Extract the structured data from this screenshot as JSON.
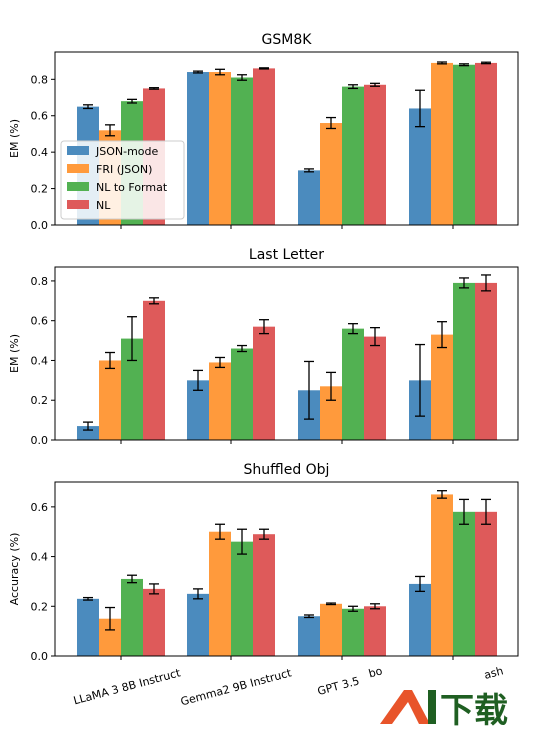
{
  "chart_data": [
    {
      "type": "bar",
      "title": "GSM8K",
      "xlabel": "",
      "ylabel": "EM (%)",
      "ylim": [
        0,
        0.95
      ],
      "yticks": [
        "0.0",
        "0.2",
        "0.4",
        "0.6",
        "0.8"
      ],
      "categories": [
        "LLaMA 3 8B Instruct",
        "Gemma2 9B Instruct",
        "GPT 3.5 Turbo",
        "Gemini 1.5 Flash"
      ],
      "series": [
        {
          "name": "JSON-mode",
          "values": [
            0.65,
            0.84,
            0.3,
            0.64
          ],
          "err": [
            0.01,
            0.005,
            0.008,
            0.1
          ]
        },
        {
          "name": "FRI (JSON)",
          "values": [
            0.52,
            0.84,
            0.56,
            0.89
          ],
          "err": [
            0.03,
            0.015,
            0.03,
            0.005
          ]
        },
        {
          "name": "NL to Format",
          "values": [
            0.68,
            0.81,
            0.76,
            0.88
          ],
          "err": [
            0.01,
            0.015,
            0.01,
            0.005
          ]
        },
        {
          "name": "NL",
          "values": [
            0.75,
            0.86,
            0.77,
            0.89
          ],
          "err": [
            0.004,
            0.003,
            0.008,
            0.004
          ]
        }
      ],
      "legend": "center-left",
      "grid": false
    },
    {
      "type": "bar",
      "title": "Last Letter",
      "xlabel": "",
      "ylabel": "EM (%)",
      "ylim": [
        0,
        0.87
      ],
      "yticks": [
        "0.0",
        "0.2",
        "0.4",
        "0.6",
        "0.8"
      ],
      "categories": [
        "LLaMA 3 8B Instruct",
        "Gemma2 9B Instruct",
        "GPT 3.5 Turbo",
        "Gemini 1.5 Flash"
      ],
      "series": [
        {
          "name": "JSON-mode",
          "values": [
            0.07,
            0.3,
            0.25,
            0.3
          ],
          "err": [
            0.02,
            0.05,
            0.145,
            0.18
          ]
        },
        {
          "name": "FRI (JSON)",
          "values": [
            0.4,
            0.39,
            0.27,
            0.53
          ],
          "err": [
            0.04,
            0.025,
            0.07,
            0.065
          ]
        },
        {
          "name": "NL to Format",
          "values": [
            0.51,
            0.46,
            0.56,
            0.79
          ],
          "err": [
            0.11,
            0.015,
            0.025,
            0.025
          ]
        },
        {
          "name": "NL",
          "values": [
            0.7,
            0.57,
            0.52,
            0.79
          ],
          "err": [
            0.015,
            0.035,
            0.045,
            0.04
          ]
        }
      ],
      "grid": false
    },
    {
      "type": "bar",
      "title": "Shuffled Obj",
      "xlabel": "",
      "ylabel": "Accuracy (%)",
      "ylim": [
        0,
        0.7
      ],
      "yticks": [
        "0.0",
        "0.2",
        "0.4",
        "0.6"
      ],
      "categories": [
        "LLaMA 3 8B Instruct",
        "Gemma2 9B Instruct",
        "GPT 3.5 Turbo",
        "Gemini 1.5 Flash"
      ],
      "series": [
        {
          "name": "JSON-mode",
          "values": [
            0.23,
            0.25,
            0.16,
            0.29
          ],
          "err": [
            0.005,
            0.02,
            0.005,
            0.03
          ]
        },
        {
          "name": "FRI (JSON)",
          "values": [
            0.15,
            0.5,
            0.21,
            0.65
          ],
          "err": [
            0.045,
            0.03,
            0.003,
            0.015
          ]
        },
        {
          "name": "NL to Format",
          "values": [
            0.31,
            0.46,
            0.19,
            0.58
          ],
          "err": [
            0.015,
            0.05,
            0.01,
            0.05
          ]
        },
        {
          "name": "NL",
          "values": [
            0.27,
            0.49,
            0.2,
            0.58
          ],
          "err": [
            0.02,
            0.02,
            0.01,
            0.05
          ]
        }
      ],
      "grid": false
    }
  ],
  "colors": {
    "JSON-mode": "#4b8bbe",
    "FRI (JSON)": "#ff9a3c",
    "NL to Format": "#52b152",
    "NL": "#de5a5a"
  },
  "visible_xticklabels": [
    "LLaMA 3 8B Instruct",
    "Gemma2 9B Instruct",
    "GPT 3.5 ",
    "bo",
    "ash"
  ],
  "watermark": {
    "text": "AI下载"
  }
}
